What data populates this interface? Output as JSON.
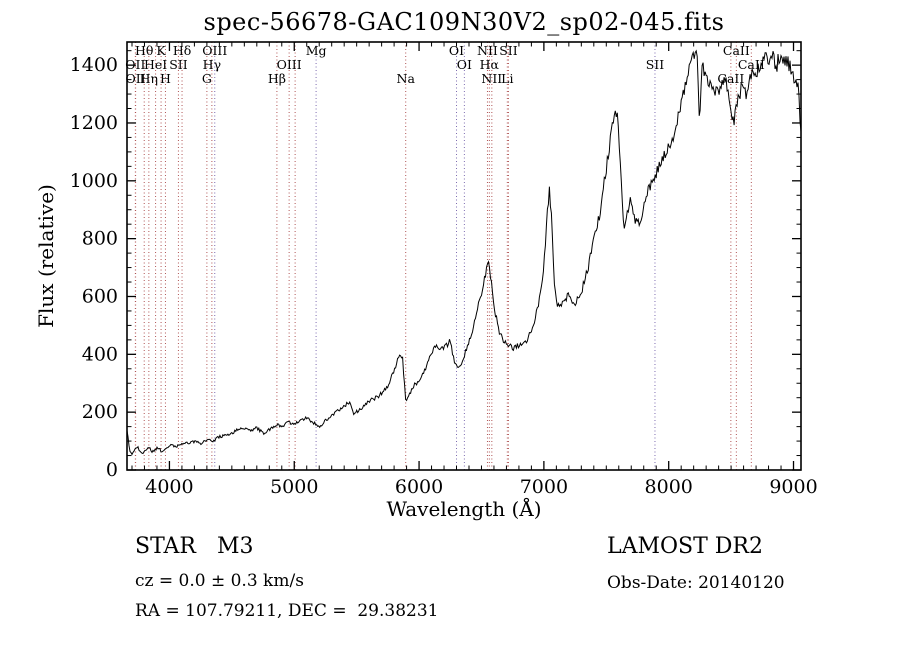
{
  "title": "spec-56678-GAC109N30V2_sp02-045.fits",
  "footer": {
    "class_label": "STAR   M3",
    "survey": "LAMOST DR2",
    "cz": "cz = 0.0 ± 0.3 km/s",
    "obs_date": "Obs-Date: 20140120",
    "coords": "RA = 107.79211, DEC =  29.38231"
  },
  "chart_data": {
    "type": "line",
    "title": "spec-56678-GAC109N30V2_sp02-045.fits",
    "xlabel": "Wavelength (Å)",
    "ylabel": "Flux (relative)",
    "xlim": [
      3660,
      9060
    ],
    "ylim": [
      0,
      1480
    ],
    "x_ticks": [
      4000,
      5000,
      6000,
      7000,
      8000,
      9000
    ],
    "y_ticks": [
      0,
      200,
      400,
      600,
      800,
      1000,
      1200,
      1400
    ],
    "x_minor_step": 100,
    "y_minor_step": 50,
    "grid": false,
    "legend": "none",
    "line_color": "#000000",
    "marker_colors": {
      "red": "#b05454",
      "purple": "#7d6bb0"
    },
    "spectral_lines": [
      {
        "label": "Hθ",
        "wl": 3798,
        "row": 0,
        "c": "red"
      },
      {
        "label": "K",
        "wl": 3933,
        "row": 0,
        "c": "red"
      },
      {
        "label": "Hδ",
        "wl": 4101,
        "row": 0,
        "c": "red"
      },
      {
        "label": "OIII",
        "wl": 4363,
        "row": 0,
        "c": "purple"
      },
      {
        "label": "Mg",
        "wl": 5175,
        "row": 0,
        "c": "purple"
      },
      {
        "label": "OI",
        "wl": 6300,
        "row": 0,
        "c": "purple"
      },
      {
        "label": "NII",
        "wl": 6548,
        "row": 0,
        "c": "red"
      },
      {
        "label": "SII",
        "wl": 6716,
        "row": 0,
        "c": "red"
      },
      {
        "label": "CaII",
        "wl": 8542,
        "row": 0,
        "c": "red"
      },
      {
        "label": "OII",
        "wl": 3727,
        "row": 1,
        "c": "red"
      },
      {
        "label": "HeI",
        "wl": 3889,
        "row": 1,
        "c": "red"
      },
      {
        "label": "SII",
        "wl": 4072,
        "row": 1,
        "c": "red"
      },
      {
        "label": "Hγ",
        "wl": 4340,
        "row": 1,
        "c": "red"
      },
      {
        "label": "OIII",
        "wl": 4959,
        "row": 1,
        "c": "red"
      },
      {
        "label": "",
        "wl": 5007,
        "row": 1,
        "c": "red"
      },
      {
        "label": "OI",
        "wl": 6363,
        "row": 1,
        "c": "purple"
      },
      {
        "label": "Hα",
        "wl": 6563,
        "row": 1,
        "c": "red"
      },
      {
        "label": "SII",
        "wl": 7890,
        "row": 1,
        "c": "purple"
      },
      {
        "label": "CaII",
        "wl": 8662,
        "row": 1,
        "c": "red"
      },
      {
        "label": "OII",
        "wl": 3729,
        "row": 2,
        "c": "red"
      },
      {
        "label": "Hη",
        "wl": 3835,
        "row": 2,
        "c": "red"
      },
      {
        "label": "H",
        "wl": 3968,
        "row": 2,
        "c": "red"
      },
      {
        "label": "G",
        "wl": 4300,
        "row": 2,
        "c": "red"
      },
      {
        "label": "Hβ",
        "wl": 4861,
        "row": 2,
        "c": "red"
      },
      {
        "label": "Na",
        "wl": 5893,
        "row": 2,
        "c": "red"
      },
      {
        "label": "NII",
        "wl": 6583,
        "row": 2,
        "c": "red"
      },
      {
        "label": "Li",
        "wl": 6707,
        "row": 2,
        "c": "red"
      },
      {
        "label": "CaII",
        "wl": 8498,
        "row": 2,
        "c": "red"
      }
    ],
    "noise_amplitude_base": 3,
    "noise_amplitude_scale": 0.016,
    "spectrum_points": [
      [
        3660,
        135
      ],
      [
        3672,
        100
      ],
      [
        3685,
        62
      ],
      [
        3705,
        55
      ],
      [
        3725,
        70
      ],
      [
        3745,
        80
      ],
      [
        3765,
        62
      ],
      [
        3790,
        58
      ],
      [
        3815,
        72
      ],
      [
        3840,
        78
      ],
      [
        3860,
        62
      ],
      [
        3885,
        70
      ],
      [
        3910,
        78
      ],
      [
        3935,
        65
      ],
      [
        3960,
        72
      ],
      [
        3985,
        78
      ],
      [
        4010,
        85
      ],
      [
        4060,
        82
      ],
      [
        4110,
        92
      ],
      [
        4160,
        95
      ],
      [
        4210,
        100
      ],
      [
        4255,
        92
      ],
      [
        4300,
        105
      ],
      [
        4345,
        98
      ],
      [
        4400,
        115
      ],
      [
        4450,
        120
      ],
      [
        4500,
        126
      ],
      [
        4550,
        140
      ],
      [
        4600,
        146
      ],
      [
        4650,
        136
      ],
      [
        4700,
        146
      ],
      [
        4755,
        126
      ],
      [
        4800,
        140
      ],
      [
        4860,
        156
      ],
      [
        4905,
        150
      ],
      [
        4950,
        165
      ],
      [
        5000,
        156
      ],
      [
        5050,
        172
      ],
      [
        5100,
        182
      ],
      [
        5160,
        162
      ],
      [
        5205,
        152
      ],
      [
        5255,
        172
      ],
      [
        5305,
        192
      ],
      [
        5355,
        206
      ],
      [
        5405,
        222
      ],
      [
        5440,
        236
      ],
      [
        5470,
        196
      ],
      [
        5520,
        206
      ],
      [
        5570,
        230
      ],
      [
        5620,
        242
      ],
      [
        5680,
        256
      ],
      [
        5740,
        282
      ],
      [
        5800,
        342
      ],
      [
        5840,
        402
      ],
      [
        5868,
        382
      ],
      [
        5893,
        238
      ],
      [
        5920,
        262
      ],
      [
        5960,
        292
      ],
      [
        6000,
        312
      ],
      [
        6050,
        352
      ],
      [
        6100,
        402
      ],
      [
        6140,
        432
      ],
      [
        6180,
        416
      ],
      [
        6220,
        432
      ],
      [
        6250,
        446
      ],
      [
        6280,
        382
      ],
      [
        6310,
        346
      ],
      [
        6340,
        362
      ],
      [
        6380,
        422
      ],
      [
        6420,
        472
      ],
      [
        6460,
        542
      ],
      [
        6500,
        612
      ],
      [
        6530,
        672
      ],
      [
        6555,
        736
      ],
      [
        6575,
        662
      ],
      [
        6600,
        562
      ],
      [
        6640,
        482
      ],
      [
        6680,
        446
      ],
      [
        6720,
        432
      ],
      [
        6760,
        422
      ],
      [
        6800,
        430
      ],
      [
        6840,
        436
      ],
      [
        6880,
        462
      ],
      [
        6920,
        502
      ],
      [
        6960,
        582
      ],
      [
        7000,
        702
      ],
      [
        7030,
        902
      ],
      [
        7045,
        966
      ],
      [
        7062,
        862
      ],
      [
        7082,
        642
      ],
      [
        7110,
        566
      ],
      [
        7150,
        582
      ],
      [
        7200,
        602
      ],
      [
        7250,
        576
      ],
      [
        7300,
        616
      ],
      [
        7350,
        692
      ],
      [
        7400,
        792
      ],
      [
        7450,
        892
      ],
      [
        7500,
        1042
      ],
      [
        7540,
        1162
      ],
      [
        7570,
        1246
      ],
      [
        7592,
        1232
      ],
      [
        7615,
        1022
      ],
      [
        7640,
        832
      ],
      [
        7662,
        872
      ],
      [
        7690,
        932
      ],
      [
        7712,
        902
      ],
      [
        7732,
        862
      ],
      [
        7762,
        852
      ],
      [
        7800,
        906
      ],
      [
        7840,
        972
      ],
      [
        7880,
        1012
      ],
      [
        7920,
        1042
      ],
      [
        7960,
        1082
      ],
      [
        8000,
        1116
      ],
      [
        8040,
        1162
      ],
      [
        8080,
        1222
      ],
      [
        8120,
        1302
      ],
      [
        8160,
        1372
      ],
      [
        8200,
        1432
      ],
      [
        8228,
        1446
      ],
      [
        8248,
        1192
      ],
      [
        8268,
        1402
      ],
      [
        8300,
        1352
      ],
      [
        8340,
        1322
      ],
      [
        8380,
        1306
      ],
      [
        8420,
        1322
      ],
      [
        8460,
        1342
      ],
      [
        8490,
        1262
      ],
      [
        8520,
        1202
      ],
      [
        8550,
        1272
      ],
      [
        8590,
        1332
      ],
      [
        8620,
        1302
      ],
      [
        8650,
        1352
      ],
      [
        8680,
        1392
      ],
      [
        8710,
        1372
      ],
      [
        8740,
        1412
      ],
      [
        8770,
        1442
      ],
      [
        8800,
        1412
      ],
      [
        8830,
        1442
      ],
      [
        8860,
        1392
      ],
      [
        8890,
        1432
      ],
      [
        8920,
        1402
      ],
      [
        8950,
        1422
      ],
      [
        8980,
        1382
      ],
      [
        9010,
        1342
      ],
      [
        9040,
        1322
      ],
      [
        9060,
        1155
      ]
    ]
  }
}
